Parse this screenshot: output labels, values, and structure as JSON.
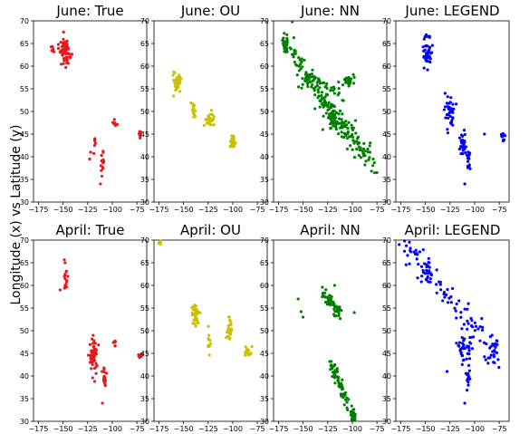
{
  "figure": {
    "ylabel": "Longitude (x) vs Latitude (y)"
  },
  "chart_data": [
    {
      "type": "scatter",
      "title": "June: True",
      "color": "#e41a1c",
      "xlim": [
        -180,
        -65
      ],
      "ylim": [
        30,
        70
      ],
      "xticks": [
        -175,
        -150,
        -125,
        -100,
        -75
      ],
      "yticks": [
        30,
        35,
        40,
        45,
        50,
        55,
        60,
        65,
        70
      ],
      "clusters": [
        {
          "center": [
            -148,
            63
          ],
          "spread": [
            4.5,
            2.5
          ],
          "n": 60
        },
        {
          "center": [
            -160,
            64
          ],
          "spread": [
            2,
            1
          ],
          "n": 6
        },
        {
          "center": [
            -118,
            44
          ],
          "spread": [
            1.2,
            3
          ],
          "n": 7
        },
        {
          "center": [
            -110,
            38.5
          ],
          "spread": [
            1.5,
            2
          ],
          "n": 14
        },
        {
          "center": [
            -97,
            47.2
          ],
          "spread": [
            3,
            0.8
          ],
          "n": 8
        },
        {
          "center": [
            -72,
            45.5
          ],
          "spread": [
            1.5,
            1
          ],
          "n": 8
        }
      ],
      "points": [
        [
          -112,
          34
        ],
        [
          -123,
          39.5
        ],
        [
          -122,
          41
        ]
      ]
    },
    {
      "type": "scatter",
      "title": "June: OU",
      "color": "#c8c000",
      "xlim": [
        -180,
        -65
      ],
      "ylim": [
        30,
        70
      ],
      "xticks": [
        -175,
        -150,
        -125,
        -100,
        -75
      ],
      "yticks": [
        30,
        35,
        40,
        45,
        50,
        55,
        60,
        65,
        70
      ],
      "clusters": [
        {
          "center": [
            -157,
            56
          ],
          "spread": [
            4,
            2
          ],
          "n": 35
        },
        {
          "center": [
            -140,
            50
          ],
          "spread": [
            1.5,
            1.2
          ],
          "n": 18
        },
        {
          "center": [
            -124,
            48
          ],
          "spread": [
            3.5,
            1.5
          ],
          "n": 30
        },
        {
          "center": [
            -100,
            43.2
          ],
          "spread": [
            2,
            1.2
          ],
          "n": 28
        }
      ],
      "points": []
    },
    {
      "type": "scatter",
      "title": "June: NN",
      "color": "#008000",
      "xlim": [
        -180,
        -65
      ],
      "ylim": [
        30,
        70
      ],
      "xticks": [
        -175,
        -150,
        -125,
        -100,
        -75
      ],
      "yticks": [
        30,
        35,
        40,
        45,
        50,
        55,
        60,
        65,
        70
      ],
      "lines": [
        {
          "from": [
            -170,
            65
          ],
          "to": [
            -75,
            37
          ],
          "n": 150,
          "jitter": 1.5
        },
        {
          "from": [
            -155,
            57
          ],
          "to": [
            -110,
            54
          ],
          "n": 40,
          "jitter": 1.2
        },
        {
          "from": [
            -140,
            54
          ],
          "to": [
            -100,
            44
          ],
          "n": 50,
          "jitter": 1.5
        }
      ],
      "clusters": [
        {
          "center": [
            -104,
            57
          ],
          "spread": [
            4,
            1
          ],
          "n": 28
        },
        {
          "center": [
            -168,
            65
          ],
          "spread": [
            3,
            1
          ],
          "n": 20
        },
        {
          "center": [
            -120,
            48
          ],
          "spread": [
            3,
            2
          ],
          "n": 30
        }
      ],
      "points": [
        [
          -161,
          70
        ],
        [
          -75,
          36.5
        ],
        [
          -82,
          41
        ],
        [
          -130,
          46
        ]
      ]
    },
    {
      "type": "scatter",
      "title": "June: LEGEND",
      "color": "#0000ff",
      "xlim": [
        -180,
        -65
      ],
      "ylim": [
        30,
        70
      ],
      "xticks": [
        -175,
        -150,
        -125,
        -100,
        -75
      ],
      "yticks": [
        30,
        35,
        40,
        45,
        50,
        55,
        60,
        65,
        70
      ],
      "clusters": [
        {
          "center": [
            -148,
            63
          ],
          "spread": [
            4,
            3
          ],
          "n": 45
        },
        {
          "center": [
            -125,
            50
          ],
          "spread": [
            5,
            3
          ],
          "n": 40
        },
        {
          "center": [
            -112,
            43
          ],
          "spread": [
            3,
            2
          ],
          "n": 30
        },
        {
          "center": [
            -106,
            39
          ],
          "spread": [
            2,
            2
          ],
          "n": 14
        },
        {
          "center": [
            -72,
            44.5
          ],
          "spread": [
            2,
            0.8
          ],
          "n": 14
        }
      ],
      "points": [
        [
          -110,
          34
        ],
        [
          -130,
          54
        ],
        [
          -90,
          45
        ]
      ]
    },
    {
      "type": "scatter",
      "title": "April: True",
      "color": "#e41a1c",
      "xlim": [
        -180,
        -65
      ],
      "ylim": [
        30,
        70
      ],
      "xticks": [
        -175,
        -150,
        -125,
        -100,
        -75
      ],
      "yticks": [
        30,
        35,
        40,
        45,
        50,
        55,
        60,
        65,
        70
      ],
      "clusters": [
        {
          "center": [
            -147,
            62
          ],
          "spread": [
            2,
            2
          ],
          "n": 14
        },
        {
          "center": [
            -119,
            44
          ],
          "spread": [
            3.5,
            3
          ],
          "n": 60
        },
        {
          "center": [
            -108,
            39.5
          ],
          "spread": [
            1.5,
            2
          ],
          "n": 22
        },
        {
          "center": [
            -97,
            47.5
          ],
          "spread": [
            2,
            0.7
          ],
          "n": 8
        },
        {
          "center": [
            -72,
            44.5
          ],
          "spread": [
            2,
            0.6
          ],
          "n": 10
        }
      ],
      "points": [
        [
          -153,
          59
        ],
        [
          -110,
          34
        ],
        [
          -148,
          65
        ]
      ]
    },
    {
      "type": "scatter",
      "title": "April: OU",
      "color": "#c8c000",
      "xlim": [
        -180,
        -65
      ],
      "ylim": [
        30,
        70
      ],
      "xticks": [
        -175,
        -150,
        -125,
        -100,
        -75
      ],
      "yticks": [
        30,
        35,
        40,
        45,
        50,
        55,
        60,
        65,
        70
      ],
      "clusters": [
        {
          "center": [
            -138,
            53.5
          ],
          "spread": [
            3,
            2
          ],
          "n": 45
        },
        {
          "center": [
            -124,
            47.5
          ],
          "spread": [
            1,
            2
          ],
          "n": 12
        },
        {
          "center": [
            -104,
            50
          ],
          "spread": [
            2.5,
            2
          ],
          "n": 30
        },
        {
          "center": [
            -85,
            45.5
          ],
          "spread": [
            2.5,
            0.8
          ],
          "n": 18
        },
        {
          "center": [
            -174,
            69.3
          ],
          "spread": [
            1,
            0.5
          ],
          "n": 6
        }
      ],
      "points": []
    },
    {
      "type": "scatter",
      "title": "April: NN",
      "color": "#008000",
      "xlim": [
        -180,
        -65
      ],
      "ylim": [
        30,
        70
      ],
      "xticks": [
        -175,
        -150,
        -125,
        -100,
        -75
      ],
      "yticks": [
        30,
        35,
        40,
        45,
        50,
        55,
        60,
        65,
        70
      ],
      "lines": [
        {
          "from": [
            -132,
            59
          ],
          "to": [
            -112,
            53.5
          ],
          "n": 55,
          "jitter": 1.0
        },
        {
          "from": [
            -122,
            43
          ],
          "to": [
            -98,
            30.5
          ],
          "n": 75,
          "jitter": 0.9
        }
      ],
      "clusters": [
        {
          "center": [
            -98,
            31
          ],
          "spread": [
            1.5,
            0.8
          ],
          "n": 15
        }
      ],
      "points": [
        [
          -155,
          57
        ],
        [
          -150,
          53
        ],
        [
          -152,
          54.2
        ],
        [
          -98,
          54
        ],
        [
          -118,
          60
        ]
      ]
    },
    {
      "type": "scatter",
      "title": "April: LEGEND",
      "color": "#0000ff",
      "xlim": [
        -180,
        -65
      ],
      "ylim": [
        30,
        70
      ],
      "xticks": [
        -175,
        -150,
        -125,
        -100,
        -75
      ],
      "yticks": [
        30,
        35,
        40,
        45,
        50,
        55,
        60,
        65,
        70
      ],
      "lines": [
        {
          "from": [
            -175,
            70
          ],
          "to": [
            -72,
            44
          ],
          "n": 95,
          "jitter": 1.8
        }
      ],
      "clusters": [
        {
          "center": [
            -148,
            62
          ],
          "spread": [
            3,
            2.5
          ],
          "n": 18
        },
        {
          "center": [
            -110,
            46
          ],
          "spread": [
            7,
            3
          ],
          "n": 40
        },
        {
          "center": [
            -107,
            39.5
          ],
          "spread": [
            2,
            1.8
          ],
          "n": 12
        },
        {
          "center": [
            -80,
            45.5
          ],
          "spread": [
            4,
            2
          ],
          "n": 14
        }
      ],
      "points": [
        [
          -110,
          34
        ],
        [
          -128,
          41
        ],
        [
          -86,
          44
        ]
      ]
    }
  ]
}
